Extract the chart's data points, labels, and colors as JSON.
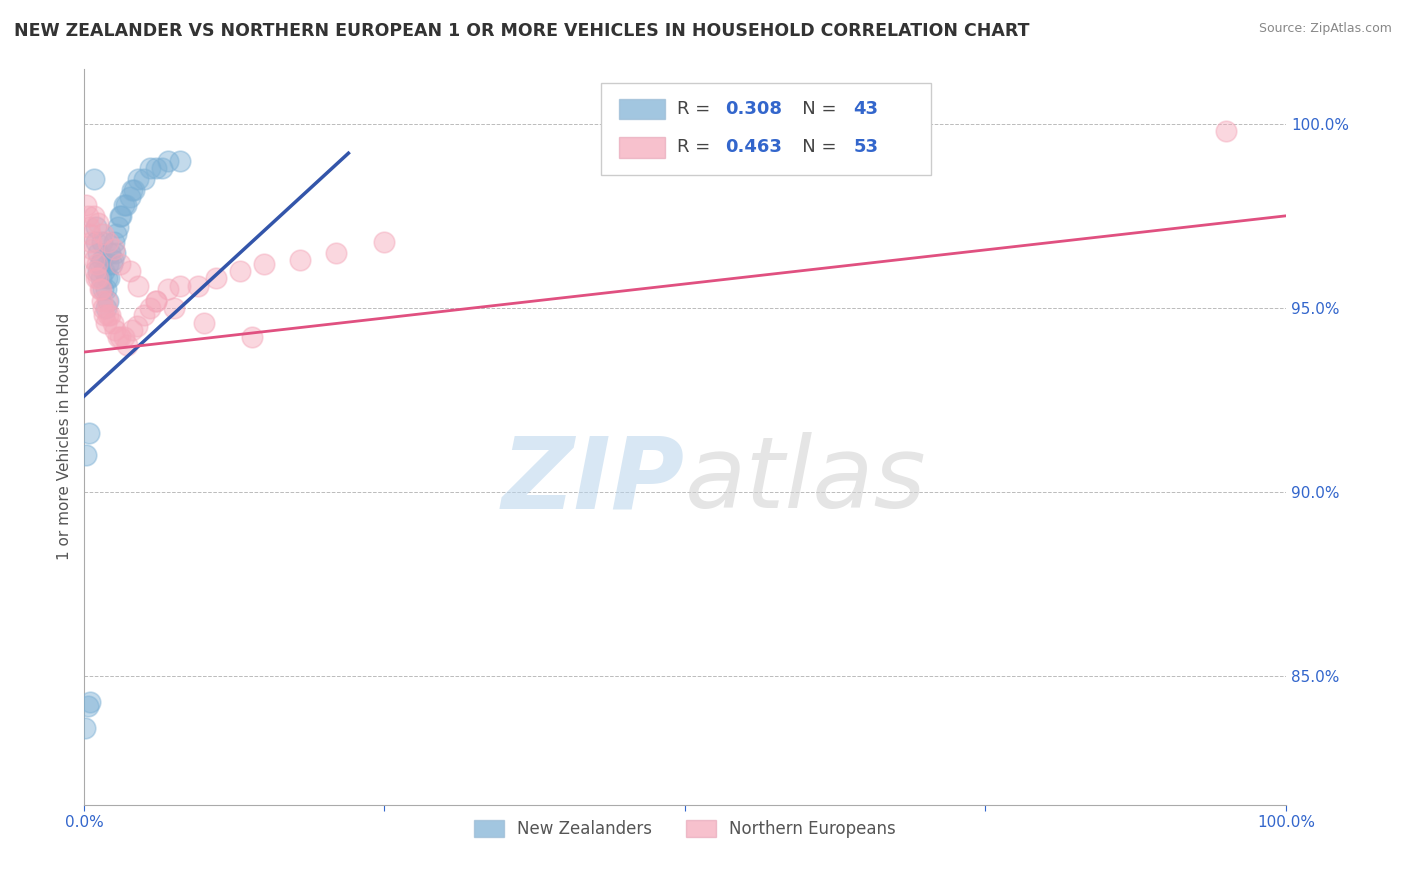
{
  "title": "NEW ZEALANDER VS NORTHERN EUROPEAN 1 OR MORE VEHICLES IN HOUSEHOLD CORRELATION CHART",
  "source": "Source: ZipAtlas.com",
  "ylabel": "1 or more Vehicles in Household",
  "r_blue": 0.308,
  "n_blue": 43,
  "r_pink": 0.463,
  "n_pink": 53,
  "xlim": [
    0.0,
    1.0
  ],
  "ylim": [
    0.815,
    1.015
  ],
  "yticks": [
    0.85,
    0.9,
    0.95,
    1.0
  ],
  "ytick_labels": [
    "85.0%",
    "90.0%",
    "95.0%",
    "100.0%"
  ],
  "xtick_labels": [
    "0.0%",
    "",
    "",
    "",
    "100.0%"
  ],
  "blue_color": "#7bafd4",
  "pink_color": "#f4a7b9",
  "blue_line_color": "#3355aa",
  "pink_line_color": "#e05080",
  "watermark_zip": "ZIP",
  "watermark_atlas": "atlas",
  "legend_labels": [
    "New Zealanders",
    "Northern Europeans"
  ],
  "background_color": "#ffffff",
  "grid_color": "#bbbbbb",
  "blue_x": [
    0.001,
    0.003,
    0.005,
    0.008,
    0.01,
    0.01,
    0.012,
    0.012,
    0.013,
    0.014,
    0.015,
    0.015,
    0.016,
    0.017,
    0.018,
    0.018,
    0.019,
    0.02,
    0.02,
    0.021,
    0.022,
    0.023,
    0.024,
    0.025,
    0.026,
    0.027,
    0.028,
    0.03,
    0.031,
    0.033,
    0.035,
    0.038,
    0.04,
    0.042,
    0.045,
    0.05,
    0.055,
    0.06,
    0.065,
    0.07,
    0.08,
    0.002,
    0.004
  ],
  "blue_y": [
    0.836,
    0.842,
    0.843,
    0.985,
    0.968,
    0.972,
    0.96,
    0.965,
    0.962,
    0.958,
    0.963,
    0.968,
    0.955,
    0.96,
    0.95,
    0.955,
    0.958,
    0.952,
    0.962,
    0.958,
    0.965,
    0.962,
    0.963,
    0.968,
    0.965,
    0.97,
    0.972,
    0.975,
    0.975,
    0.978,
    0.978,
    0.98,
    0.982,
    0.982,
    0.985,
    0.985,
    0.988,
    0.988,
    0.988,
    0.99,
    0.99,
    0.91,
    0.916
  ],
  "pink_x": [
    0.002,
    0.003,
    0.004,
    0.005,
    0.006,
    0.007,
    0.008,
    0.009,
    0.01,
    0.011,
    0.012,
    0.013,
    0.014,
    0.015,
    0.016,
    0.017,
    0.018,
    0.019,
    0.02,
    0.022,
    0.024,
    0.026,
    0.028,
    0.03,
    0.033,
    0.036,
    0.04,
    0.044,
    0.05,
    0.055,
    0.06,
    0.07,
    0.08,
    0.095,
    0.11,
    0.13,
    0.15,
    0.18,
    0.21,
    0.25,
    0.008,
    0.012,
    0.016,
    0.02,
    0.025,
    0.03,
    0.038,
    0.045,
    0.06,
    0.075,
    0.1,
    0.14,
    0.95
  ],
  "pink_y": [
    0.978,
    0.975,
    0.972,
    0.97,
    0.968,
    0.966,
    0.963,
    0.96,
    0.958,
    0.962,
    0.958,
    0.955,
    0.955,
    0.952,
    0.95,
    0.948,
    0.946,
    0.952,
    0.948,
    0.948,
    0.946,
    0.944,
    0.942,
    0.942,
    0.942,
    0.94,
    0.944,
    0.945,
    0.948,
    0.95,
    0.952,
    0.955,
    0.956,
    0.956,
    0.958,
    0.96,
    0.962,
    0.963,
    0.965,
    0.968,
    0.975,
    0.973,
    0.97,
    0.968,
    0.966,
    0.962,
    0.96,
    0.956,
    0.952,
    0.95,
    0.946,
    0.942,
    0.998
  ],
  "blue_trend_x": [
    0.0,
    0.22
  ],
  "blue_trend_y": [
    0.926,
    0.992
  ],
  "pink_trend_x": [
    0.0,
    1.0
  ],
  "pink_trend_y": [
    0.938,
    0.975
  ]
}
